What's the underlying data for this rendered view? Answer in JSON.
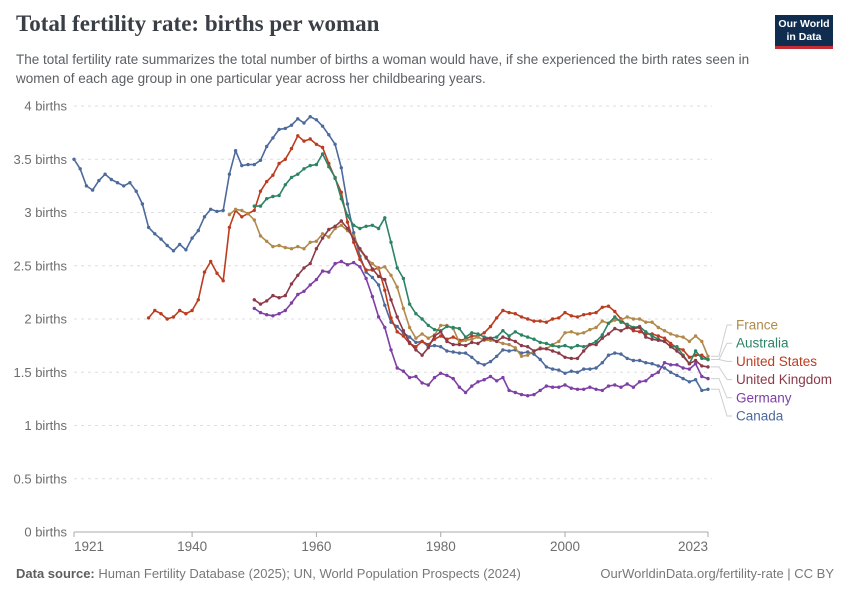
{
  "header": {
    "title": "Total fertility rate: births per woman",
    "subtitle": "The total fertility rate summarizes the total number of births a woman would have, if she experienced the birth rates seen in women of each age group in one particular year across her childbearing years.",
    "logo": {
      "line1": "Our World",
      "line2": "in Data",
      "bg": "#102d50",
      "accent": "#c32e36"
    }
  },
  "chart_data": {
    "type": "line",
    "title": "Total fertility rate: births per woman",
    "xlabel": "",
    "ylabel": "births",
    "xlim": [
      1921,
      2023
    ],
    "ylim": [
      0,
      4
    ],
    "grid": "horizontal-dashed",
    "legend_position": "right",
    "x_ticks": [
      1921,
      1940,
      1960,
      1980,
      2000,
      2023
    ],
    "y_ticks": [
      0,
      0.5,
      1,
      1.5,
      2,
      2.5,
      3,
      3.5,
      4
    ],
    "y_tick_labels": [
      "0 births",
      "0.5 births",
      "1 births",
      "1.5 births",
      "2 births",
      "2.5 births",
      "3 births",
      "3.5 births",
      "4 births"
    ],
    "legend_order": [
      "France",
      "Australia",
      "United States",
      "United Kingdom",
      "Germany",
      "Canada"
    ],
    "series": [
      {
        "name": "Canada",
        "color": "#4C6A9C",
        "start_year": 1921,
        "values": [
          3.5,
          3.41,
          3.25,
          3.21,
          3.3,
          3.36,
          3.31,
          3.28,
          3.25,
          3.28,
          3.2,
          3.08,
          2.86,
          2.8,
          2.75,
          2.69,
          2.64,
          2.7,
          2.65,
          2.76,
          2.83,
          2.96,
          3.03,
          3.01,
          3.02,
          3.36,
          3.58,
          3.44,
          3.45,
          3.45,
          3.49,
          3.62,
          3.7,
          3.78,
          3.79,
          3.82,
          3.88,
          3.84,
          3.9,
          3.87,
          3.81,
          3.73,
          3.64,
          3.42,
          3.08,
          2.81,
          2.59,
          2.44,
          2.39,
          2.32,
          2.13,
          1.97,
          1.93,
          1.87,
          1.83,
          1.78,
          1.79,
          1.74,
          1.75,
          1.74,
          1.7,
          1.69,
          1.68,
          1.68,
          1.64,
          1.59,
          1.57,
          1.6,
          1.65,
          1.71,
          1.7,
          1.71,
          1.68,
          1.69,
          1.67,
          1.62,
          1.55,
          1.53,
          1.52,
          1.49,
          1.51,
          1.5,
          1.53,
          1.53,
          1.54,
          1.59,
          1.66,
          1.68,
          1.67,
          1.63,
          1.61,
          1.61,
          1.59,
          1.58,
          1.56,
          1.54,
          1.5,
          1.47,
          1.44,
          1.41,
          1.43,
          1.33,
          1.34
        ]
      },
      {
        "name": "United States",
        "color": "#BC3C1F",
        "start_year": 1933,
        "values": [
          2.01,
          2.08,
          2.05,
          2.0,
          2.02,
          2.08,
          2.05,
          2.08,
          2.18,
          2.44,
          2.54,
          2.43,
          2.36,
          2.86,
          3.02,
          2.96,
          2.99,
          3.02,
          3.2,
          3.29,
          3.35,
          3.46,
          3.5,
          3.6,
          3.72,
          3.67,
          3.69,
          3.64,
          3.61,
          3.46,
          3.32,
          3.19,
          2.91,
          2.72,
          2.56,
          2.46,
          2.46,
          2.48,
          2.27,
          2.01,
          1.88,
          1.84,
          1.77,
          1.74,
          1.79,
          1.76,
          1.81,
          1.84,
          1.81,
          1.83,
          1.8,
          1.81,
          1.84,
          1.84,
          1.87,
          1.93,
          2.01,
          2.08,
          2.06,
          2.05,
          2.02,
          2.0,
          1.98,
          1.98,
          1.97,
          2.0,
          2.01,
          2.06,
          2.03,
          2.02,
          2.04,
          2.05,
          2.06,
          2.11,
          2.12,
          2.07,
          2.0,
          1.93,
          1.89,
          1.88,
          1.86,
          1.86,
          1.84,
          1.82,
          1.77,
          1.73,
          1.71,
          1.64,
          1.66,
          1.66,
          1.62
        ]
      },
      {
        "name": "France",
        "color": "#B18A4B",
        "start_year": 1946,
        "values": [
          2.98,
          3.03,
          3.02,
          2.99,
          2.93,
          2.78,
          2.73,
          2.68,
          2.69,
          2.67,
          2.66,
          2.68,
          2.66,
          2.72,
          2.73,
          2.8,
          2.77,
          2.85,
          2.88,
          2.83,
          2.78,
          2.65,
          2.57,
          2.52,
          2.47,
          2.49,
          2.41,
          2.3,
          2.1,
          1.92,
          1.82,
          1.86,
          1.82,
          1.85,
          1.94,
          1.94,
          1.91,
          1.78,
          1.8,
          1.81,
          1.83,
          1.8,
          1.8,
          1.79,
          1.77,
          1.76,
          1.73,
          1.65,
          1.66,
          1.7,
          1.73,
          1.72,
          1.76,
          1.79,
          1.87,
          1.88,
          1.86,
          1.87,
          1.9,
          1.92,
          1.98,
          1.96,
          1.99,
          1.99,
          2.02,
          2.0,
          2.0,
          1.97,
          1.97,
          1.92,
          1.89,
          1.86,
          1.84,
          1.83,
          1.79,
          1.84,
          1.79,
          1.65
        ]
      },
      {
        "name": "Australia",
        "color": "#2C8465",
        "start_year": 1950,
        "values": [
          3.06,
          3.06,
          3.13,
          3.15,
          3.16,
          3.26,
          3.33,
          3.36,
          3.41,
          3.44,
          3.45,
          3.55,
          3.43,
          3.33,
          3.13,
          2.97,
          2.88,
          2.85,
          2.87,
          2.88,
          2.85,
          2.95,
          2.72,
          2.48,
          2.38,
          2.14,
          2.05,
          2.0,
          1.94,
          1.9,
          1.89,
          1.93,
          1.92,
          1.91,
          1.83,
          1.87,
          1.86,
          1.83,
          1.82,
          1.83,
          1.89,
          1.84,
          1.88,
          1.85,
          1.83,
          1.81,
          1.78,
          1.77,
          1.75,
          1.74,
          1.75,
          1.73,
          1.75,
          1.74,
          1.76,
          1.79,
          1.85,
          1.96,
          2.02,
          1.97,
          1.95,
          1.92,
          1.93,
          1.88,
          1.84,
          1.81,
          1.79,
          1.74,
          1.74,
          1.66,
          1.58,
          1.7,
          1.63,
          1.62
        ]
      },
      {
        "name": "United Kingdom",
        "color": "#8C3A48",
        "start_year": 1950,
        "values": [
          2.18,
          2.14,
          2.17,
          2.22,
          2.2,
          2.22,
          2.33,
          2.41,
          2.48,
          2.52,
          2.66,
          2.76,
          2.84,
          2.87,
          2.92,
          2.85,
          2.75,
          2.66,
          2.58,
          2.47,
          2.4,
          2.37,
          2.18,
          2.02,
          1.89,
          1.78,
          1.71,
          1.66,
          1.73,
          1.84,
          1.88,
          1.79,
          1.76,
          1.76,
          1.75,
          1.78,
          1.77,
          1.81,
          1.82,
          1.79,
          1.83,
          1.81,
          1.79,
          1.75,
          1.74,
          1.7,
          1.72,
          1.72,
          1.7,
          1.68,
          1.64,
          1.63,
          1.63,
          1.7,
          1.76,
          1.76,
          1.82,
          1.86,
          1.91,
          1.89,
          1.92,
          1.91,
          1.92,
          1.83,
          1.81,
          1.8,
          1.79,
          1.74,
          1.7,
          1.65,
          1.58,
          1.61,
          1.56,
          1.55
        ]
      },
      {
        "name": "Germany",
        "color": "#7E3FA6",
        "start_year": 1950,
        "values": [
          2.1,
          2.06,
          2.04,
          2.03,
          2.05,
          2.08,
          2.15,
          2.23,
          2.26,
          2.32,
          2.37,
          2.45,
          2.44,
          2.52,
          2.54,
          2.51,
          2.53,
          2.49,
          2.38,
          2.21,
          2.02,
          1.92,
          1.71,
          1.54,
          1.51,
          1.45,
          1.46,
          1.4,
          1.38,
          1.45,
          1.49,
          1.47,
          1.44,
          1.36,
          1.31,
          1.37,
          1.41,
          1.43,
          1.46,
          1.42,
          1.45,
          1.33,
          1.31,
          1.29,
          1.28,
          1.29,
          1.33,
          1.37,
          1.36,
          1.36,
          1.38,
          1.35,
          1.34,
          1.34,
          1.36,
          1.34,
          1.33,
          1.37,
          1.38,
          1.36,
          1.39,
          1.36,
          1.41,
          1.42,
          1.47,
          1.5,
          1.59,
          1.57,
          1.57,
          1.54,
          1.53,
          1.58,
          1.46,
          1.44
        ]
      }
    ]
  },
  "footer": {
    "datasource_label": "Data source:",
    "datasource_text": " Human Fertility Database (2025); UN, World Population Prospects (2024)",
    "link_text": "OurWorldinData.org/fertility-rate | CC BY"
  }
}
